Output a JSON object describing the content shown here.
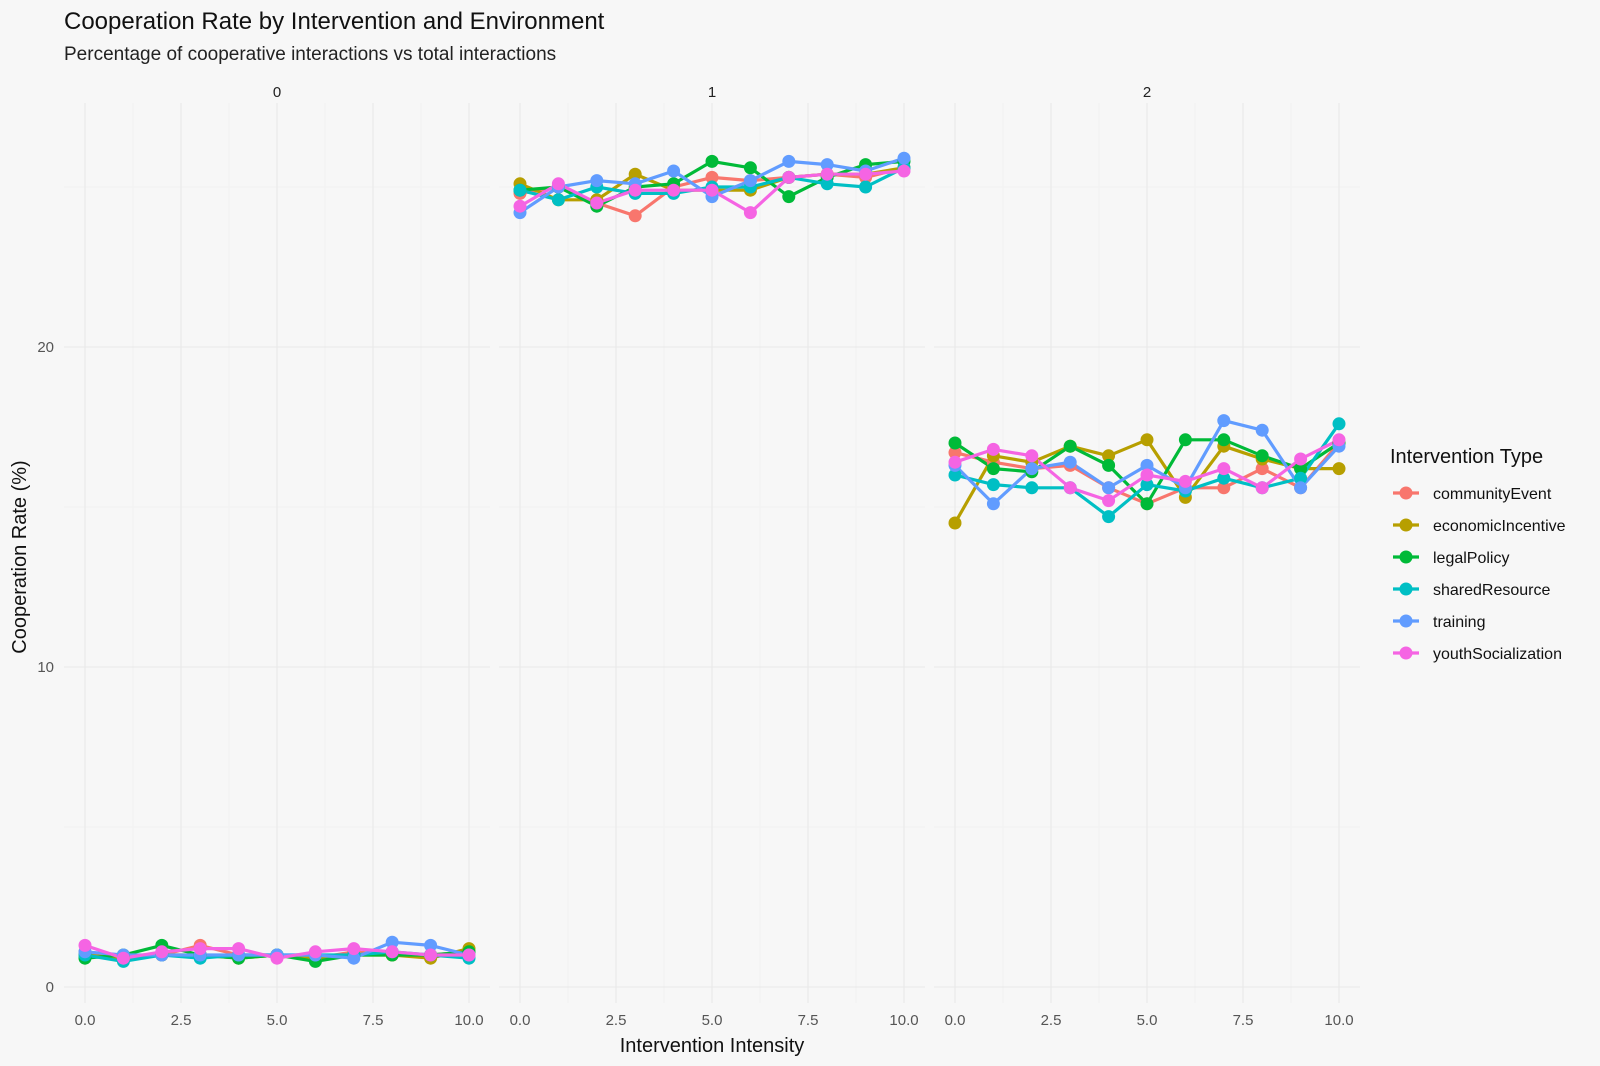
{
  "chart_data": {
    "type": "line",
    "title": "Cooperation Rate by Intervention and Environment",
    "subtitle": "Percentage of cooperative interactions vs total interactions",
    "xlabel": "Intervention Intensity",
    "ylabel": "Cooperation Rate (%)",
    "xlim": [
      0,
      10
    ],
    "ylim": [
      0,
      26
    ],
    "x_ticks": [
      "0.0",
      "2.5",
      "5.0",
      "7.5",
      "10.0"
    ],
    "y_ticks": [
      "0",
      "10",
      "20"
    ],
    "grid": true,
    "legend": {
      "title": "Intervention Type",
      "position": "right"
    },
    "x": [
      0,
      1,
      2,
      3,
      4,
      5,
      6,
      7,
      8,
      9,
      10
    ],
    "panels": [
      {
        "label": "0",
        "series": [
          {
            "name": "communityEvent",
            "color": "#F8766D",
            "values": [
              1.1,
              0.9,
              1.0,
              1.3,
              1.0,
              1.0,
              0.9,
              1.1,
              1.0,
              1.0,
              1.1
            ]
          },
          {
            "name": "economicIncentive",
            "color": "#B79F00",
            "values": [
              1.0,
              0.9,
              1.0,
              1.0,
              0.9,
              1.0,
              0.9,
              1.0,
              1.0,
              0.9,
              1.2
            ]
          },
          {
            "name": "legalPolicy",
            "color": "#00BA38",
            "values": [
              0.9,
              1.0,
              1.3,
              1.0,
              0.9,
              1.0,
              0.8,
              1.0,
              1.0,
              1.0,
              1.1
            ]
          },
          {
            "name": "sharedResource",
            "color": "#00BFC4",
            "values": [
              1.0,
              0.8,
              1.0,
              0.9,
              1.0,
              1.0,
              1.0,
              1.0,
              1.1,
              1.0,
              0.9
            ]
          },
          {
            "name": "training",
            "color": "#619CFF",
            "values": [
              1.1,
              1.0,
              1.0,
              1.0,
              1.0,
              1.0,
              1.0,
              0.9,
              1.4,
              1.3,
              1.0
            ]
          },
          {
            "name": "youthSocialization",
            "color": "#F564E3",
            "values": [
              1.3,
              0.9,
              1.1,
              1.2,
              1.2,
              0.9,
              1.1,
              1.2,
              1.1,
              1.0,
              1.0
            ]
          }
        ]
      },
      {
        "label": "1",
        "series": [
          {
            "name": "communityEvent",
            "color": "#F8766D",
            "values": [
              24.8,
              25.0,
              24.5,
              24.1,
              25.0,
              25.3,
              25.2,
              25.3,
              25.4,
              25.3,
              25.6
            ]
          },
          {
            "name": "economicIncentive",
            "color": "#B79F00",
            "values": [
              25.1,
              24.6,
              24.6,
              25.4,
              24.9,
              24.9,
              24.9,
              25.3,
              25.4,
              25.4,
              25.6
            ]
          },
          {
            "name": "legalPolicy",
            "color": "#00BA38",
            "values": [
              24.9,
              25.0,
              24.4,
              25.0,
              25.1,
              25.8,
              25.6,
              24.7,
              25.3,
              25.7,
              25.8
            ]
          },
          {
            "name": "sharedResource",
            "color": "#00BFC4",
            "values": [
              24.9,
              24.6,
              25.0,
              24.8,
              24.8,
              25.0,
              25.0,
              25.3,
              25.1,
              25.0,
              25.6
            ]
          },
          {
            "name": "training",
            "color": "#619CFF",
            "values": [
              24.2,
              25.0,
              25.2,
              25.1,
              25.5,
              24.7,
              25.2,
              25.8,
              25.7,
              25.5,
              25.9
            ]
          },
          {
            "name": "youthSocialization",
            "color": "#F564E3",
            "values": [
              24.4,
              25.1,
              24.5,
              24.9,
              24.9,
              24.9,
              24.2,
              25.3,
              25.4,
              25.4,
              25.5
            ]
          }
        ]
      },
      {
        "label": "2",
        "series": [
          {
            "name": "communityEvent",
            "color": "#F8766D",
            "values": [
              16.7,
              16.4,
              16.2,
              16.3,
              15.6,
              15.1,
              15.6,
              15.6,
              16.2,
              15.6,
              17.0
            ]
          },
          {
            "name": "economicIncentive",
            "color": "#B79F00",
            "values": [
              14.5,
              16.6,
              16.4,
              16.9,
              16.6,
              17.1,
              15.3,
              16.9,
              16.5,
              16.2,
              16.2
            ]
          },
          {
            "name": "legalPolicy",
            "color": "#00BA38",
            "values": [
              17.0,
              16.2,
              16.1,
              16.9,
              16.3,
              15.1,
              17.1,
              17.1,
              16.6,
              16.2,
              17.0
            ]
          },
          {
            "name": "sharedResource",
            "color": "#00BFC4",
            "values": [
              16.0,
              15.7,
              15.6,
              15.6,
              14.7,
              15.7,
              15.5,
              15.9,
              15.6,
              15.9,
              17.6
            ]
          },
          {
            "name": "training",
            "color": "#619CFF",
            "values": [
              16.3,
              15.1,
              16.2,
              16.4,
              15.6,
              16.3,
              15.6,
              17.7,
              17.4,
              15.6,
              16.9
            ]
          },
          {
            "name": "youthSocialization",
            "color": "#F564E3",
            "values": [
              16.4,
              16.8,
              16.6,
              15.6,
              15.2,
              16.0,
              15.8,
              16.2,
              15.6,
              16.5,
              17.1
            ]
          }
        ]
      }
    ]
  }
}
